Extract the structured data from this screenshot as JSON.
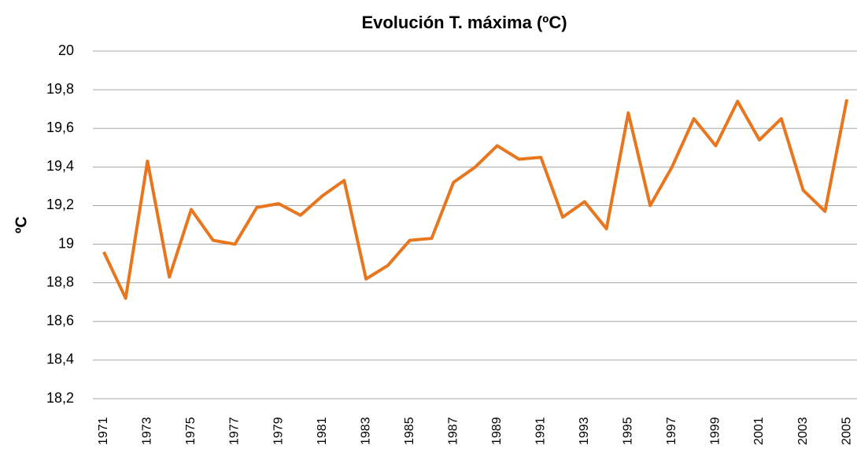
{
  "chart_data": {
    "type": "line",
    "title": "Evolución T. máxima (ºC)",
    "y_label": "ºC",
    "categories": [
      "1971",
      null,
      "1973",
      null,
      "1975",
      null,
      "1977",
      null,
      "1979",
      null,
      "1981",
      null,
      "1983",
      null,
      "1985",
      null,
      "1987",
      null,
      "1989",
      null,
      "1991",
      null,
      "1993",
      null,
      "1995",
      null,
      "1997",
      null,
      "1999",
      null,
      "2001",
      null,
      "2003",
      null,
      "2005"
    ],
    "series": [
      {
        "name": "T. máxima",
        "color": "#e8761f",
        "values": [
          18.96,
          18.72,
          19.43,
          18.83,
          19.18,
          19.02,
          19.0,
          19.19,
          19.21,
          19.15,
          19.25,
          19.33,
          18.82,
          18.89,
          19.02,
          19.03,
          19.32,
          19.4,
          19.51,
          19.44,
          19.45,
          19.14,
          19.22,
          19.08,
          19.68,
          19.2,
          19.4,
          19.65,
          19.51,
          19.74,
          19.54,
          19.65,
          19.28,
          19.17,
          19.75
        ]
      }
    ],
    "ylim": [
      18.2,
      20
    ],
    "yticks": [
      {
        "value": 18.2,
        "label": "18,2"
      },
      {
        "value": 18.4,
        "label": "18,4"
      },
      {
        "value": 18.6,
        "label": "18,6"
      },
      {
        "value": 18.8,
        "label": "18,8"
      },
      19,
      {
        "value": 19.2,
        "label": "19,2"
      },
      {
        "value": 19.4,
        "label": "19,4"
      },
      {
        "value": 19.6,
        "label": "19,6"
      },
      {
        "value": 19.8,
        "label": "19,8"
      },
      20
    ],
    "grid": true
  }
}
